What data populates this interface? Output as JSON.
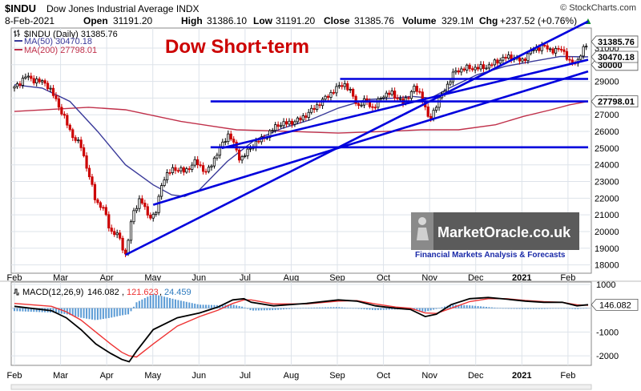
{
  "header": {
    "symbol": "$INDU",
    "name": "Dow Jones Industrial Average INDX",
    "source": "© StockCharts.com",
    "date": "8-Feb-2021",
    "open_label": "Open",
    "open": "31191.20",
    "high_label": "High",
    "high": "31386.10",
    "low_label": "Low",
    "low": "31191.20",
    "close_label": "Close",
    "close": "31385.76",
    "volume_label": "Volume",
    "volume": "329.1M",
    "chg_label": "Chg",
    "chg": "+237.52 (+0.76%)",
    "chg_arrow": "▲"
  },
  "legend": {
    "price": "$INDU (Daily) 31385.76",
    "ma50": "MA(50) 30470.18",
    "ma200": "MA(200) 27798.01"
  },
  "annotation": {
    "title": "Dow Short-term"
  },
  "watermark": {
    "brand": "MarketOracle.co.uk",
    "tagline": "Financial Markets Analysis & Forecasts"
  },
  "macd_legend": {
    "label": "MACD(12,26,9)",
    "macd": "146.082",
    "signal": "121.623",
    "hist": "24.459"
  },
  "colors": {
    "up": "#000000",
    "down": "#cc0000",
    "ma50": "#3a3a9a",
    "ma200": "#c0304a",
    "trendline": "#0000dd",
    "annotation": "#cc0000",
    "macd": "#000000",
    "signal": "#ee3333",
    "hist": "#5b9bd5",
    "grid": "#dde3ea"
  },
  "chart_data": {
    "type": "line",
    "title": "Dow Short-term",
    "x_ticks": [
      "Feb",
      "Mar",
      "Apr",
      "May",
      "Jun",
      "Jul",
      "Aug",
      "Sep",
      "Oct",
      "Nov",
      "Dec",
      "2021",
      "Feb"
    ],
    "price_axis": {
      "min": 17500,
      "max": 32200,
      "ticks": [
        31000,
        30000,
        29000,
        28000,
        27000,
        26000,
        25000,
        24000,
        23000,
        22000,
        21000,
        20000,
        19000,
        18000
      ],
      "price_tag": "31385.76",
      "ma50_tag": "30470.18",
      "mid_tag": "30000",
      "ma200_tag": "27798.01",
      "near_tags": [
        "29000",
        "28000",
        "25000"
      ]
    },
    "price_keypoints": [
      [
        0,
        28600
      ],
      [
        6,
        29300
      ],
      [
        10,
        29100
      ],
      [
        17,
        28900
      ],
      [
        22,
        28000
      ],
      [
        27,
        26800
      ],
      [
        31,
        25800
      ],
      [
        36,
        25100
      ],
      [
        40,
        23500
      ],
      [
        44,
        21800
      ],
      [
        48,
        21400
      ],
      [
        52,
        20000
      ],
      [
        56,
        19800
      ],
      [
        60,
        18600
      ],
      [
        64,
        21100
      ],
      [
        68,
        22000
      ],
      [
        72,
        21000
      ],
      [
        76,
        20900
      ],
      [
        80,
        23100
      ],
      [
        86,
        23800
      ],
      [
        92,
        23600
      ],
      [
        98,
        24200
      ],
      [
        104,
        23500
      ],
      [
        110,
        24800
      ],
      [
        116,
        25900
      ],
      [
        122,
        24300
      ],
      [
        126,
        24800
      ],
      [
        130,
        25300
      ],
      [
        136,
        25700
      ],
      [
        142,
        26400
      ],
      [
        148,
        26500
      ],
      [
        154,
        26700
      ],
      [
        160,
        27200
      ],
      [
        166,
        27800
      ],
      [
        172,
        28400
      ],
      [
        178,
        28900
      ],
      [
        182,
        28300
      ],
      [
        186,
        27500
      ],
      [
        190,
        27900
      ],
      [
        194,
        27300
      ],
      [
        198,
        28100
      ],
      [
        204,
        28300
      ],
      [
        210,
        27700
      ],
      [
        216,
        28600
      ],
      [
        220,
        28200
      ],
      [
        224,
        26600
      ],
      [
        228,
        27600
      ],
      [
        232,
        28400
      ],
      [
        238,
        29600
      ],
      [
        244,
        29800
      ],
      [
        250,
        29800
      ],
      [
        256,
        29900
      ],
      [
        262,
        30300
      ],
      [
        268,
        30500
      ],
      [
        274,
        30200
      ],
      [
        280,
        30900
      ],
      [
        286,
        31100
      ],
      [
        292,
        30800
      ],
      [
        296,
        31000
      ],
      [
        300,
        30100
      ],
      [
        304,
        30200
      ],
      [
        306,
        30600
      ],
      [
        310,
        31385.76
      ]
    ],
    "ma50_keypoints": [
      [
        0,
        28800
      ],
      [
        15,
        28600
      ],
      [
        30,
        27800
      ],
      [
        45,
        26000
      ],
      [
        60,
        24000
      ],
      [
        75,
        22800
      ],
      [
        85,
        22200
      ],
      [
        92,
        22100
      ],
      [
        100,
        22500
      ],
      [
        115,
        24200
      ],
      [
        130,
        25500
      ],
      [
        145,
        26200
      ],
      [
        160,
        26700
      ],
      [
        175,
        27400
      ],
      [
        190,
        27900
      ],
      [
        205,
        28000
      ],
      [
        215,
        28100
      ],
      [
        225,
        28000
      ],
      [
        235,
        28600
      ],
      [
        250,
        29400
      ],
      [
        265,
        29900
      ],
      [
        280,
        30200
      ],
      [
        295,
        30500
      ],
      [
        310,
        30470.18
      ]
    ],
    "ma200_keypoints": [
      [
        0,
        27200
      ],
      [
        40,
        27450
      ],
      [
        60,
        27300
      ],
      [
        90,
        26600
      ],
      [
        120,
        26100
      ],
      [
        150,
        26000
      ],
      [
        175,
        25900
      ],
      [
        200,
        26000
      ],
      [
        220,
        26100
      ],
      [
        240,
        26100
      ],
      [
        260,
        26400
      ],
      [
        275,
        26900
      ],
      [
        290,
        27300
      ],
      [
        300,
        27600
      ],
      [
        310,
        27798.01
      ]
    ],
    "trendlines": [
      {
        "p1": [
          60,
          18600
        ],
        "p2": [
          310,
          32600
        ]
      },
      {
        "p1": [
          75,
          21600
        ],
        "p2": [
          310,
          29600
        ]
      },
      {
        "p1": [
          112,
          25000
        ],
        "p2": [
          310,
          30300
        ]
      },
      {
        "p1": [
          176,
          29150
        ],
        "p2": [
          310,
          29150
        ]
      },
      {
        "p1": [
          106,
          27800
        ],
        "p2": [
          310,
          27800
        ]
      },
      {
        "p1": [
          106,
          25050
        ],
        "p2": [
          310,
          25050
        ]
      }
    ],
    "macd_axis": {
      "min": -2400,
      "max": 1100,
      "ticks": [
        1000,
        -1000,
        -2000
      ],
      "tag": "146.082"
    },
    "macd_keypoints": [
      [
        0,
        80
      ],
      [
        20,
        -100
      ],
      [
        28,
        -400
      ],
      [
        36,
        -900
      ],
      [
        44,
        -1500
      ],
      [
        52,
        -1900
      ],
      [
        58,
        -2150
      ],
      [
        62,
        -2250
      ],
      [
        66,
        -1800
      ],
      [
        75,
        -900
      ],
      [
        88,
        -400
      ],
      [
        100,
        -200
      ],
      [
        110,
        50
      ],
      [
        118,
        350
      ],
      [
        124,
        400
      ],
      [
        128,
        250
      ],
      [
        140,
        100
      ],
      [
        158,
        200
      ],
      [
        175,
        350
      ],
      [
        185,
        300
      ],
      [
        195,
        100
      ],
      [
        206,
        0
      ],
      [
        214,
        -50
      ],
      [
        222,
        -350
      ],
      [
        228,
        -250
      ],
      [
        236,
        150
      ],
      [
        246,
        400
      ],
      [
        256,
        450
      ],
      [
        266,
        380
      ],
      [
        276,
        300
      ],
      [
        286,
        250
      ],
      [
        296,
        250
      ],
      [
        304,
        100
      ],
      [
        310,
        146.082
      ]
    ],
    "signal_keypoints": [
      [
        0,
        200
      ],
      [
        20,
        80
      ],
      [
        28,
        -150
      ],
      [
        36,
        -500
      ],
      [
        44,
        -1000
      ],
      [
        52,
        -1500
      ],
      [
        58,
        -1850
      ],
      [
        62,
        -2000
      ],
      [
        66,
        -2050
      ],
      [
        75,
        -1500
      ],
      [
        88,
        -750
      ],
      [
        100,
        -350
      ],
      [
        110,
        -80
      ],
      [
        118,
        200
      ],
      [
        124,
        350
      ],
      [
        128,
        350
      ],
      [
        140,
        180
      ],
      [
        158,
        180
      ],
      [
        175,
        300
      ],
      [
        185,
        320
      ],
      [
        195,
        180
      ],
      [
        206,
        50
      ],
      [
        214,
        0
      ],
      [
        222,
        -200
      ],
      [
        228,
        -220
      ],
      [
        236,
        0
      ],
      [
        246,
        280
      ],
      [
        256,
        400
      ],
      [
        266,
        400
      ],
      [
        276,
        330
      ],
      [
        286,
        280
      ],
      [
        296,
        250
      ],
      [
        304,
        140
      ],
      [
        310,
        121.623
      ]
    ]
  }
}
